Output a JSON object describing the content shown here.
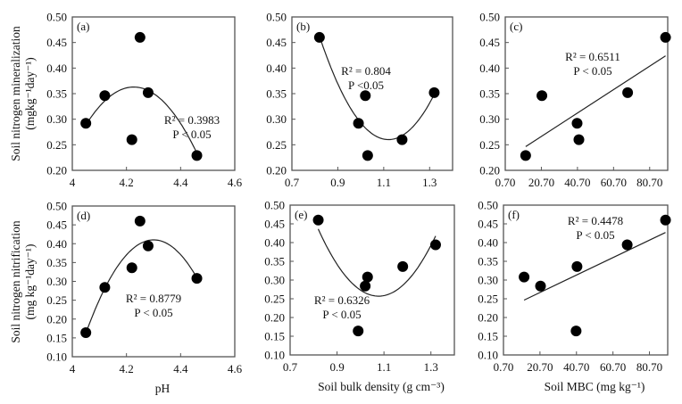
{
  "chart_data": [
    {
      "type": "scatter",
      "panel": "(a)",
      "xlabel": "",
      "ylabel": "Soil nitrogen mineralization",
      "ylabel_unit": "(mgkg⁻¹day⁻¹)",
      "xlim": [
        4,
        4.6
      ],
      "ylim": [
        0.2,
        0.5
      ],
      "xticks": [
        "4",
        "4.2",
        "4.4",
        "4.6"
      ],
      "yticks": [
        "0.20",
        "0.25",
        "0.30",
        "0.35",
        "0.40",
        "0.45",
        "0.50"
      ],
      "x": [
        4.05,
        4.12,
        4.22,
        4.25,
        4.28,
        4.46
      ],
      "y": [
        0.292,
        0.346,
        0.26,
        0.46,
        0.352,
        0.229
      ],
      "fit": "quadratic",
      "annotation": [
        "R² = 0.3983",
        "P < 0.05"
      ]
    },
    {
      "type": "scatter",
      "panel": "(b)",
      "xlabel": "",
      "ylabel": "",
      "xlim": [
        0.7,
        1.4
      ],
      "ylim": [
        0.2,
        0.5
      ],
      "xticks": [
        "0.7",
        "0.9",
        "1.1",
        "1.3"
      ],
      "yticks": [
        "0.20",
        "0.25",
        "0.30",
        "0.35",
        "0.40",
        "0.45",
        "0.50"
      ],
      "x": [
        0.82,
        0.99,
        1.02,
        1.03,
        1.18,
        1.32
      ],
      "y": [
        0.46,
        0.292,
        0.346,
        0.229,
        0.26,
        0.352
      ],
      "fit": "quadratic",
      "annotation": [
        "R² = 0.804",
        "P <0.05"
      ]
    },
    {
      "type": "scatter",
      "panel": "(c)",
      "xlabel": "",
      "ylabel": "",
      "xlim": [
        0.7,
        90.7
      ],
      "ylim": [
        0.2,
        0.5
      ],
      "xticks": [
        "0.70",
        "20.70",
        "40.70",
        "60.70",
        "80.70"
      ],
      "yticks": [
        "0.20",
        "0.25",
        "0.30",
        "0.35",
        "0.40",
        "0.45",
        "0.50"
      ],
      "x": [
        12.0,
        21.0,
        40.5,
        41.5,
        68.5,
        89.5
      ],
      "y": [
        0.229,
        0.346,
        0.292,
        0.26,
        0.352,
        0.46
      ],
      "fit": "linear",
      "annotation": [
        "R² = 0.6511",
        "P < 0.05"
      ]
    },
    {
      "type": "scatter",
      "panel": "(d)",
      "xlabel": "pH",
      "ylabel": "Soil nitrogen nitrification",
      "ylabel_unit": "(mg kg⁻¹day⁻¹)",
      "xlim": [
        4,
        4.6
      ],
      "ylim": [
        0.1,
        0.5
      ],
      "xticks": [
        "4",
        "4.2",
        "4.4",
        "4.6"
      ],
      "yticks": [
        "0.10",
        "0.15",
        "0.20",
        "0.25",
        "0.30",
        "0.35",
        "0.40",
        "0.45",
        "0.50"
      ],
      "x": [
        4.05,
        4.12,
        4.22,
        4.25,
        4.28,
        4.46
      ],
      "y": [
        0.164,
        0.284,
        0.336,
        0.46,
        0.394,
        0.308
      ],
      "fit": "quadratic",
      "annotation": [
        "R² = 0.8779",
        "P < 0.05"
      ]
    },
    {
      "type": "scatter",
      "panel": "(e)",
      "xlabel": "Soil bulk density (g cm⁻³)",
      "ylabel": "",
      "xlim": [
        0.7,
        1.4
      ],
      "ylim": [
        0.1,
        0.5
      ],
      "xticks": [
        "0.7",
        "0.9",
        "1.1",
        "1.3"
      ],
      "yticks": [
        "0.10",
        "0.15",
        "0.20",
        "0.25",
        "0.30",
        "0.35",
        "0.40",
        "0.45",
        "0.50"
      ],
      "x": [
        0.82,
        0.99,
        1.02,
        1.03,
        1.18,
        1.32
      ],
      "y": [
        0.46,
        0.164,
        0.284,
        0.308,
        0.336,
        0.394
      ],
      "fit": "quadratic",
      "annotation": [
        "R² = 0.6326",
        "P < 0.05"
      ]
    },
    {
      "type": "scatter",
      "panel": "(f)",
      "xlabel": "Soil MBC (mg kg⁻¹)",
      "ylabel": "",
      "xlim": [
        0.7,
        90.7
      ],
      "ylim": [
        0.1,
        0.5
      ],
      "xticks": [
        "0.70",
        "20.70",
        "40.70",
        "60.70",
        "80.70"
      ],
      "yticks": [
        "0.10",
        "0.15",
        "0.20",
        "0.25",
        "0.30",
        "0.35",
        "0.40",
        "0.45",
        "0.50"
      ],
      "x": [
        12.0,
        21.0,
        40.5,
        41.0,
        68.5,
        89.5
      ],
      "y": [
        0.308,
        0.284,
        0.164,
        0.336,
        0.394,
        0.46
      ],
      "fit": "linear",
      "annotation": [
        "R² = 0.4478",
        "P < 0.05"
      ]
    }
  ],
  "colors": {
    "marker": "#000000",
    "axis": "#555555",
    "text": "#111111"
  }
}
